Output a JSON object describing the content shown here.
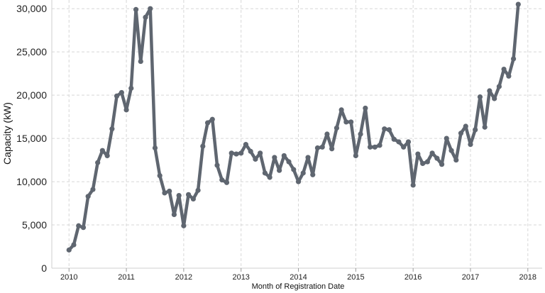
{
  "chart_data": {
    "type": "line",
    "title": "",
    "xlabel": "Month of Registration Date",
    "ylabel": "Capacity (kW)",
    "ylim": [
      0,
      31000
    ],
    "xlim": [
      2009.7,
      2018.25
    ],
    "yticks": [
      0,
      5000,
      10000,
      15000,
      20000,
      25000,
      30000
    ],
    "ytick_labels": [
      "0",
      "5,000",
      "10,000",
      "15,000",
      "20,000",
      "25,000",
      "30,000"
    ],
    "xticks": [
      2010,
      2011,
      2012,
      2013,
      2014,
      2015,
      2016,
      2017,
      2018
    ],
    "xtick_labels": [
      "2010",
      "2011",
      "2012",
      "2013",
      "2014",
      "2015",
      "2016",
      "2017",
      "2018"
    ],
    "grid": true,
    "line_color": "#5f6670",
    "grid_color": "#d7d7d7",
    "x": [
      2010.0,
      2010.083,
      2010.167,
      2010.25,
      2010.333,
      2010.417,
      2010.5,
      2010.583,
      2010.667,
      2010.75,
      2010.833,
      2010.917,
      2011.0,
      2011.083,
      2011.167,
      2011.25,
      2011.333,
      2011.417,
      2011.5,
      2011.583,
      2011.667,
      2011.75,
      2011.833,
      2011.917,
      2012.0,
      2012.083,
      2012.167,
      2012.25,
      2012.333,
      2012.417,
      2012.5,
      2012.583,
      2012.667,
      2012.75,
      2012.833,
      2012.917,
      2013.0,
      2013.083,
      2013.167,
      2013.25,
      2013.333,
      2013.417,
      2013.5,
      2013.583,
      2013.667,
      2013.75,
      2013.833,
      2013.917,
      2014.0,
      2014.083,
      2014.167,
      2014.25,
      2014.333,
      2014.417,
      2014.5,
      2014.583,
      2014.667,
      2014.75,
      2014.833,
      2014.917,
      2015.0,
      2015.083,
      2015.167,
      2015.25,
      2015.333,
      2015.417,
      2015.5,
      2015.583,
      2015.667,
      2015.75,
      2015.833,
      2015.917,
      2016.0,
      2016.083,
      2016.167,
      2016.25,
      2016.333,
      2016.417,
      2016.5,
      2016.583,
      2016.667,
      2016.75,
      2016.833,
      2016.917,
      2017.0,
      2017.083,
      2017.167,
      2017.25,
      2017.333,
      2017.417,
      2017.5,
      2017.583,
      2017.667,
      2017.75,
      2017.833
    ],
    "series": [
      {
        "values": [
          2100,
          2700,
          4900,
          4700,
          8300,
          9100,
          12200,
          13600,
          13000,
          16100,
          19900,
          20300,
          18300,
          20800,
          29900,
          23900,
          29000,
          30000,
          13900,
          10700,
          8700,
          8900,
          6200,
          8400,
          4900,
          8500,
          8000,
          9000,
          14100,
          16800,
          17200,
          11900,
          10200,
          9900,
          13300,
          13200,
          13300,
          14300,
          13500,
          12600,
          13300,
          11000,
          10500,
          12800,
          11300,
          13000,
          12300,
          11400,
          10000,
          11000,
          12800,
          10800,
          13900,
          14000,
          15500,
          13800,
          16200,
          18300,
          16900,
          16900,
          13000,
          15500,
          18500,
          14000,
          14000,
          14200,
          16100,
          16000,
          14900,
          14600,
          14000,
          14600,
          9600,
          13200,
          12100,
          12300,
          13300,
          12700,
          12000,
          15000,
          13600,
          12500,
          15600,
          16400,
          14300,
          16000,
          19800,
          16300,
          20500,
          19600,
          21000,
          23000,
          22200,
          24200,
          30500
        ]
      }
    ]
  }
}
